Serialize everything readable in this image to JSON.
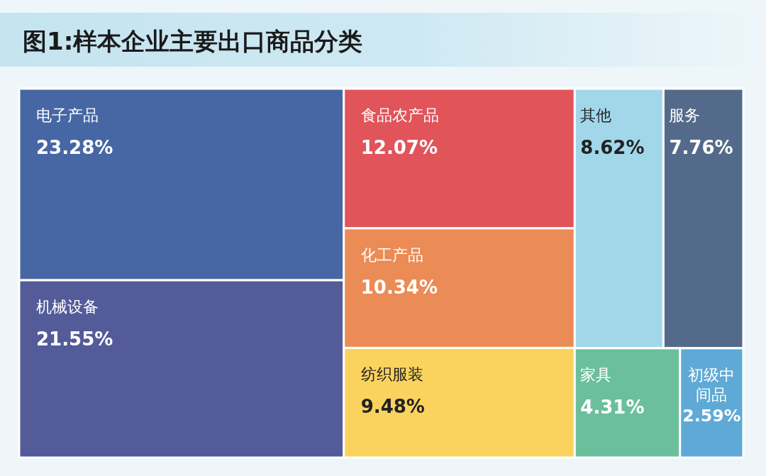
{
  "chart_data": {
    "type": "other",
    "title": "图1:样本企业主要出口商品分类",
    "categories": [
      "电子产品",
      "机械设备",
      "食品农产品",
      "化工产品",
      "纺织服装",
      "其他",
      "服务",
      "家具",
      "初级中间品"
    ],
    "values": [
      23.28,
      21.55,
      12.07,
      10.34,
      9.48,
      8.62,
      7.76,
      4.31,
      2.59
    ],
    "value_labels": [
      "23.28%",
      "21.55%",
      "12.07%",
      "10.34%",
      "9.48%",
      "8.62%",
      "7.76%",
      "4.31%",
      "2.59%"
    ],
    "colors": [
      "#4667a3",
      "#535b99",
      "#e0545a",
      "#eb8b55",
      "#fad35e",
      "#a2d7ea",
      "#546a8a",
      "#6bbf9c",
      "#5ea9d5"
    ]
  }
}
